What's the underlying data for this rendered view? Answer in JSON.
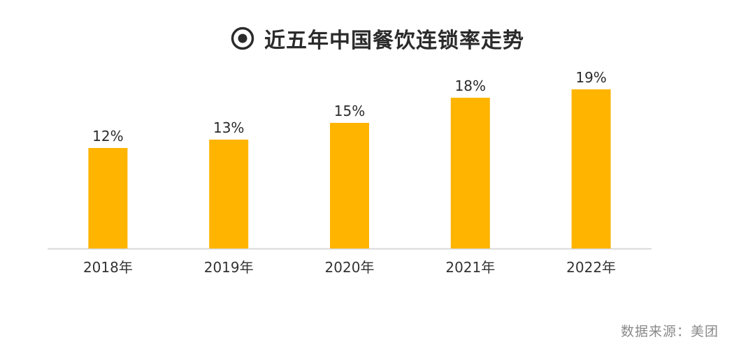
{
  "chart_data": {
    "type": "bar",
    "title": "近五年中国餐饮连锁率走势",
    "categories": [
      "2018年",
      "2019年",
      "2020年",
      "2021年",
      "2022年"
    ],
    "values": [
      12,
      13,
      15,
      18,
      19
    ],
    "data_labels": [
      "12%",
      "13%",
      "15%",
      "18%",
      "19%"
    ],
    "ylim": [
      0,
      22
    ],
    "grid": false,
    "legend": "none",
    "bar_color": "#FFB400",
    "axis_color": "#d9d9d9"
  },
  "source": "数据来源：美团"
}
